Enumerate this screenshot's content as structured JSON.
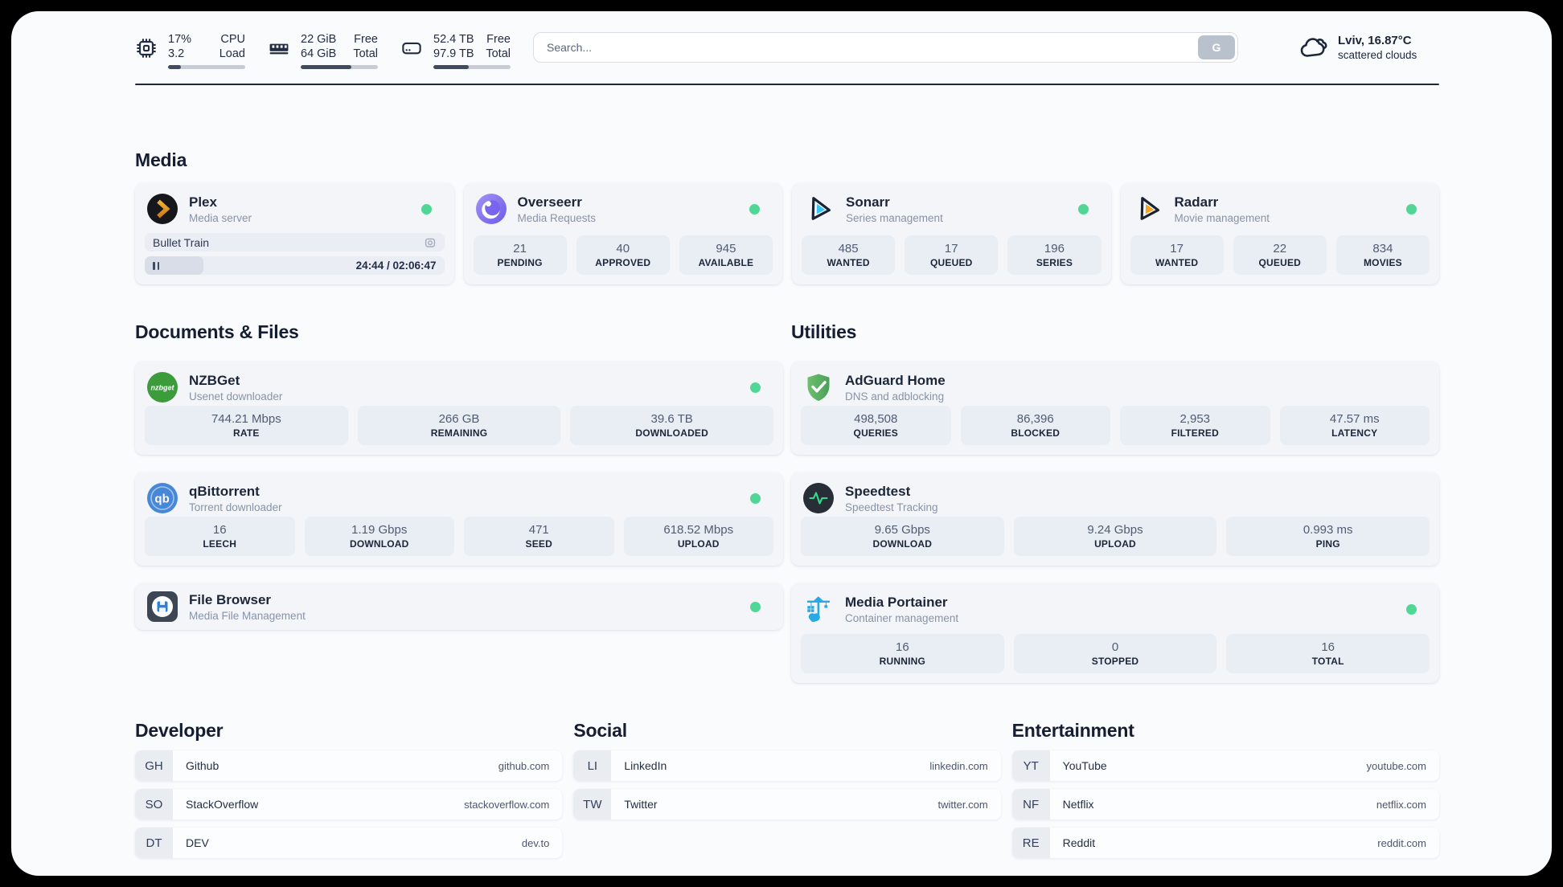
{
  "topbar": {
    "cpu": {
      "value_top": "17%",
      "value_bottom": "3.2",
      "label_top": "CPU",
      "label_bottom": "Load",
      "progress_percent": 17
    },
    "memory": {
      "value_top": "22 GiB",
      "value_bottom": "64 GiB",
      "label_top": "Free",
      "label_bottom": "Total",
      "progress_percent": 66
    },
    "disk": {
      "value_top": "52.4 TB",
      "value_bottom": "97.9 TB",
      "label_top": "Free",
      "label_bottom": "Total",
      "progress_percent": 46
    },
    "search": {
      "placeholder": "Search...",
      "button_label": "G"
    },
    "weather": {
      "location_temp": "Lviv, 16.87°C",
      "condition": "scattered clouds"
    }
  },
  "sections": {
    "media": {
      "title": "Media",
      "plex": {
        "name": "Plex",
        "description": "Media server",
        "status": "online",
        "now_playing": "Bullet Train",
        "time": "24:44 / 02:06:47",
        "progress_percent": 19.5
      },
      "cards": [
        {
          "name": "Overseerr",
          "description": "Media Requests",
          "status": "online",
          "stats": [
            {
              "value": "21",
              "label": "PENDING"
            },
            {
              "value": "40",
              "label": "APPROVED"
            },
            {
              "value": "945",
              "label": "AVAILABLE"
            }
          ]
        },
        {
          "name": "Sonarr",
          "description": "Series management",
          "status": "online",
          "stats": [
            {
              "value": "485",
              "label": "WANTED"
            },
            {
              "value": "17",
              "label": "QUEUED"
            },
            {
              "value": "196",
              "label": "SERIES"
            }
          ]
        },
        {
          "name": "Radarr",
          "description": "Movie management",
          "status": "online",
          "stats": [
            {
              "value": "17",
              "label": "WANTED"
            },
            {
              "value": "22",
              "label": "QUEUED"
            },
            {
              "value": "834",
              "label": "MOVIES"
            }
          ]
        }
      ]
    },
    "documents": {
      "title": "Documents & Files",
      "cards": [
        {
          "name": "NZBGet",
          "description": "Usenet downloader",
          "status": "online",
          "stats": [
            {
              "value": "744.21 Mbps",
              "label": "RATE"
            },
            {
              "value": "266 GB",
              "label": "REMAINING"
            },
            {
              "value": "39.6 TB",
              "label": "DOWNLOADED"
            }
          ]
        },
        {
          "name": "qBittorrent",
          "description": "Torrent downloader",
          "status": "online",
          "stats": [
            {
              "value": "16",
              "label": "LEECH"
            },
            {
              "value": "1.19 Gbps",
              "label": "DOWNLOAD"
            },
            {
              "value": "471",
              "label": "SEED"
            },
            {
              "value": "618.52 Mbps",
              "label": "UPLOAD"
            }
          ]
        },
        {
          "name": "File Browser",
          "description": "Media File Management",
          "status": "online",
          "stats": []
        }
      ]
    },
    "utilities": {
      "title": "Utilities",
      "cards": [
        {
          "name": "AdGuard Home",
          "description": "DNS and adblocking",
          "stats": [
            {
              "value": "498,508",
              "label": "QUERIES"
            },
            {
              "value": "86,396",
              "label": "BLOCKED"
            },
            {
              "value": "2,953",
              "label": "FILTERED"
            },
            {
              "value": "47.57 ms",
              "label": "LATENCY"
            }
          ]
        },
        {
          "name": "Speedtest",
          "description": "Speedtest Tracking",
          "stats": [
            {
              "value": "9.65 Gbps",
              "label": "DOWNLOAD"
            },
            {
              "value": "9.24 Gbps",
              "label": "UPLOAD"
            },
            {
              "value": "0.993 ms",
              "label": "PING"
            }
          ]
        },
        {
          "name": "Media Portainer",
          "description": "Container management",
          "status": "online",
          "stats": [
            {
              "value": "16",
              "label": "RUNNING"
            },
            {
              "value": "0",
              "label": "STOPPED"
            },
            {
              "value": "16",
              "label": "TOTAL"
            }
          ]
        }
      ]
    },
    "bookmarks": [
      {
        "title": "Developer",
        "items": [
          {
            "abbr": "GH",
            "name": "Github",
            "url": "github.com"
          },
          {
            "abbr": "SO",
            "name": "StackOverflow",
            "url": "stackoverflow.com"
          },
          {
            "abbr": "DT",
            "name": "DEV",
            "url": "dev.to"
          }
        ]
      },
      {
        "title": "Social",
        "items": [
          {
            "abbr": "LI",
            "name": "LinkedIn",
            "url": "linkedin.com"
          },
          {
            "abbr": "TW",
            "name": "Twitter",
            "url": "twitter.com"
          }
        ]
      },
      {
        "title": "Entertainment",
        "items": [
          {
            "abbr": "YT",
            "name": "YouTube",
            "url": "youtube.com"
          },
          {
            "abbr": "NF",
            "name": "Netflix",
            "url": "netflix.com"
          },
          {
            "abbr": "RE",
            "name": "Reddit",
            "url": "reddit.com"
          }
        ]
      }
    ]
  },
  "colors": {
    "status_online": "#50d795",
    "page_surface": "#fafbfd",
    "card_surface": "#f4f5f8",
    "stat_tile": "#e9edf4",
    "text_dark": "#1c2639",
    "progress_fill": "#3f4b60"
  }
}
